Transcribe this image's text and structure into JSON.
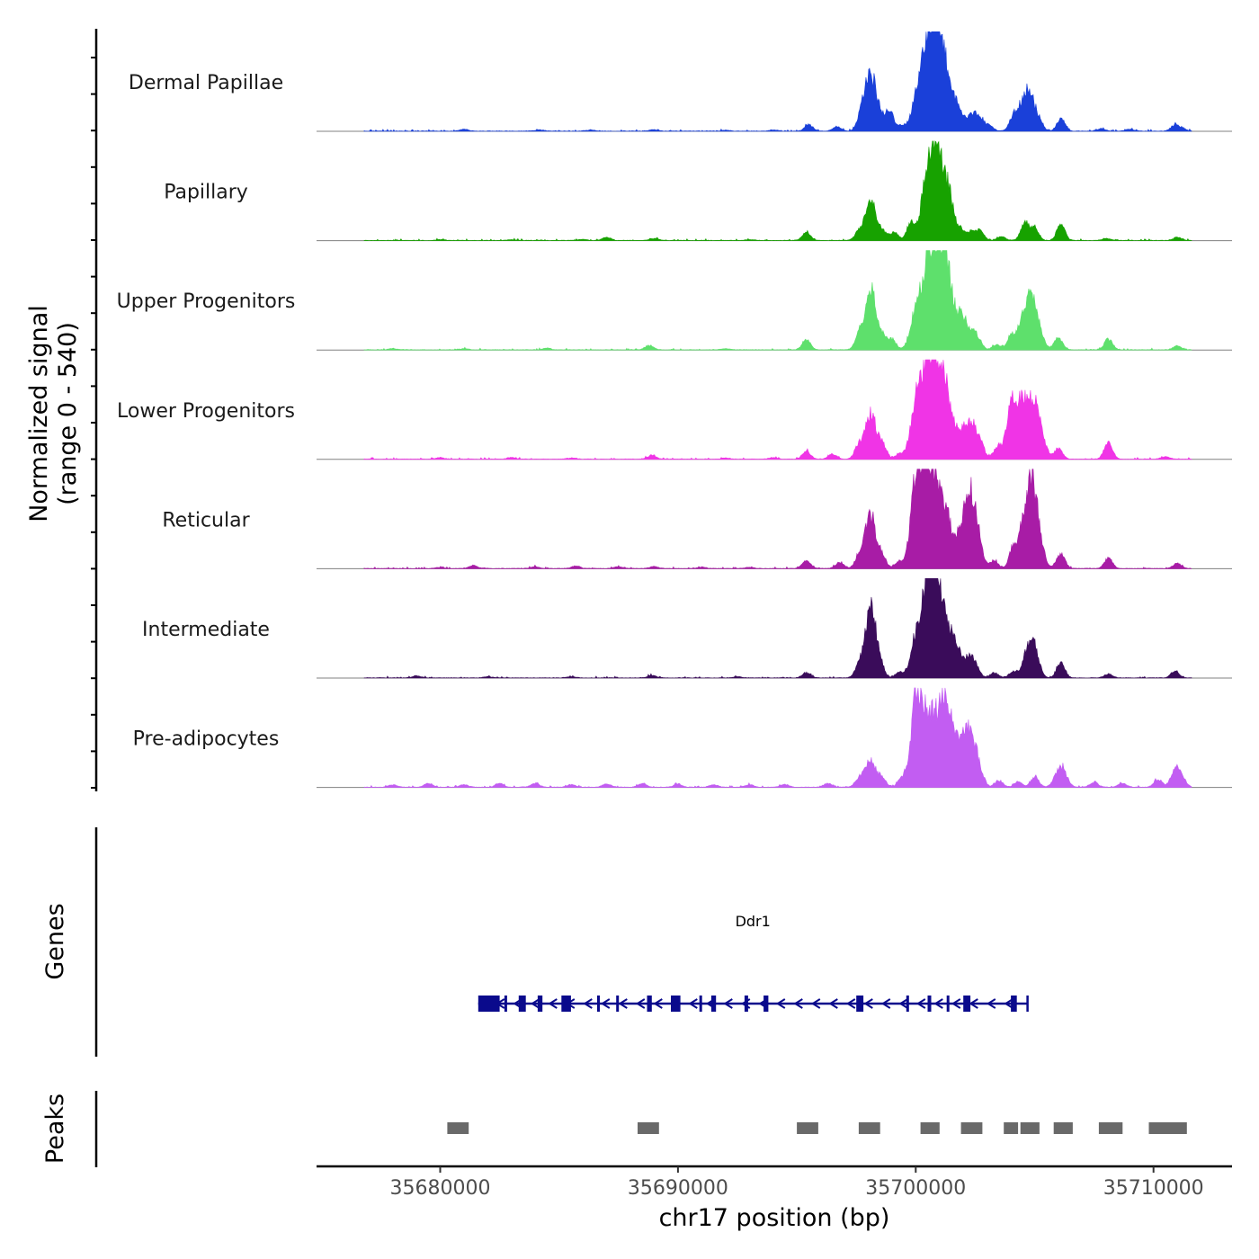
{
  "chart_data": {
    "type": "area",
    "title": "",
    "chromosome": "chr17",
    "xlabel": "chr17 position (bp)",
    "ylabel": "Normalized signal",
    "ylabel_range": "(range 0 - 540)",
    "ylim": [
      0,
      540
    ],
    "xlim": [
      35674800,
      35713300
    ],
    "x_ticks": [
      35680000,
      35690000,
      35700000,
      35710000
    ],
    "x_tick_labels": [
      "35680000",
      "35690000",
      "35700000",
      "35710000"
    ],
    "tracks": [
      {
        "name": "Dermal Papillae",
        "color": "#1a40d9",
        "signal_start": 35676800,
        "signal_end": 35711600,
        "peaks": [
          [
            35681000,
            14
          ],
          [
            35684200,
            10
          ],
          [
            35686300,
            9
          ],
          [
            35689000,
            11
          ],
          [
            35692000,
            6
          ],
          [
            35694000,
            8
          ],
          [
            35695500,
            50
          ],
          [
            35696700,
            35
          ],
          [
            35697700,
            110
          ],
          [
            35698100,
            430
          ],
          [
            35698500,
            90
          ],
          [
            35698900,
            150
          ],
          [
            35699400,
            40
          ],
          [
            35700000,
            160
          ],
          [
            35700300,
            300
          ],
          [
            35700600,
            420
          ],
          [
            35700800,
            380
          ],
          [
            35701000,
            300
          ],
          [
            35701200,
            260
          ],
          [
            35701500,
            160
          ],
          [
            35701800,
            120
          ],
          [
            35702100,
            60
          ],
          [
            35702400,
            110
          ],
          [
            35702700,
            90
          ],
          [
            35703100,
            40
          ],
          [
            35704100,
            100
          ],
          [
            35704500,
            160
          ],
          [
            35704800,
            230
          ],
          [
            35705200,
            60
          ],
          [
            35706100,
            90
          ],
          [
            35707800,
            20
          ],
          [
            35709000,
            15
          ],
          [
            35710900,
            45
          ],
          [
            35711200,
            20
          ]
        ]
      },
      {
        "name": "Papillary",
        "color": "#17a200",
        "signal_start": 35676800,
        "signal_end": 35711600,
        "peaks": [
          [
            35680000,
            6
          ],
          [
            35683000,
            6
          ],
          [
            35686000,
            8
          ],
          [
            35687000,
            25
          ],
          [
            35689000,
            15
          ],
          [
            35693000,
            6
          ],
          [
            35695400,
            60
          ],
          [
            35697600,
            60
          ],
          [
            35698100,
            310
          ],
          [
            35698600,
            60
          ],
          [
            35699100,
            60
          ],
          [
            35699800,
            140
          ],
          [
            35700300,
            140
          ],
          [
            35700600,
            540
          ],
          [
            35700900,
            330
          ],
          [
            35701200,
            390
          ],
          [
            35701500,
            140
          ],
          [
            35701900,
            80
          ],
          [
            35702300,
            60
          ],
          [
            35702700,
            80
          ],
          [
            35703600,
            30
          ],
          [
            35704600,
            140
          ],
          [
            35705000,
            90
          ],
          [
            35706100,
            120
          ],
          [
            35708000,
            15
          ],
          [
            35711000,
            25
          ]
        ]
      },
      {
        "name": "Upper Progenitors",
        "color": "#5ee06c",
        "signal_start": 35676800,
        "signal_end": 35711600,
        "peaks": [
          [
            35678000,
            10
          ],
          [
            35681000,
            8
          ],
          [
            35684500,
            12
          ],
          [
            35688800,
            35
          ],
          [
            35692000,
            8
          ],
          [
            35695400,
            80
          ],
          [
            35697600,
            100
          ],
          [
            35698100,
            480
          ],
          [
            35698600,
            100
          ],
          [
            35699000,
            80
          ],
          [
            35700000,
            260
          ],
          [
            35700300,
            180
          ],
          [
            35700600,
            540
          ],
          [
            35700900,
            450
          ],
          [
            35701200,
            460
          ],
          [
            35701500,
            280
          ],
          [
            35701900,
            150
          ],
          [
            35702200,
            160
          ],
          [
            35702600,
            80
          ],
          [
            35703400,
            40
          ],
          [
            35704000,
            100
          ],
          [
            35704500,
            180
          ],
          [
            35704800,
            250
          ],
          [
            35705100,
            180
          ],
          [
            35706000,
            90
          ],
          [
            35708100,
            80
          ],
          [
            35711000,
            30
          ]
        ]
      },
      {
        "name": "Lower Progenitors",
        "color": "#f034e6",
        "signal_start": 35676800,
        "signal_end": 35711600,
        "peaks": [
          [
            35680000,
            12
          ],
          [
            35683000,
            14
          ],
          [
            35685500,
            10
          ],
          [
            35688900,
            30
          ],
          [
            35692000,
            10
          ],
          [
            35694000,
            12
          ],
          [
            35695400,
            60
          ],
          [
            35696500,
            40
          ],
          [
            35697600,
            100
          ],
          [
            35698100,
            360
          ],
          [
            35698600,
            100
          ],
          [
            35699300,
            40
          ],
          [
            35700000,
            380
          ],
          [
            35700300,
            280
          ],
          [
            35700600,
            550
          ],
          [
            35700900,
            420
          ],
          [
            35701200,
            380
          ],
          [
            35701500,
            220
          ],
          [
            35701900,
            130
          ],
          [
            35702300,
            270
          ],
          [
            35702700,
            120
          ],
          [
            35703400,
            80
          ],
          [
            35704000,
            330
          ],
          [
            35704300,
            200
          ],
          [
            35704600,
            260
          ],
          [
            35704900,
            270
          ],
          [
            35705200,
            210
          ],
          [
            35706000,
            80
          ],
          [
            35708100,
            140
          ],
          [
            35710500,
            20
          ]
        ]
      },
      {
        "name": "Reticular",
        "color": "#a81ca6",
        "signal_start": 35676800,
        "signal_end": 35711600,
        "peaks": [
          [
            35680000,
            10
          ],
          [
            35681400,
            25
          ],
          [
            35684000,
            12
          ],
          [
            35685700,
            20
          ],
          [
            35687500,
            14
          ],
          [
            35689000,
            15
          ],
          [
            35691000,
            12
          ],
          [
            35693000,
            10
          ],
          [
            35695400,
            60
          ],
          [
            35696800,
            50
          ],
          [
            35697600,
            80
          ],
          [
            35698100,
            410
          ],
          [
            35698600,
            80
          ],
          [
            35699300,
            50
          ],
          [
            35700000,
            560
          ],
          [
            35700300,
            400
          ],
          [
            35700600,
            520
          ],
          [
            35700900,
            330
          ],
          [
            35701200,
            250
          ],
          [
            35701500,
            200
          ],
          [
            35701900,
            130
          ],
          [
            35702200,
            430
          ],
          [
            35702500,
            310
          ],
          [
            35703300,
            60
          ],
          [
            35704100,
            150
          ],
          [
            35704500,
            180
          ],
          [
            35704800,
            490
          ],
          [
            35705100,
            280
          ],
          [
            35706100,
            110
          ],
          [
            35708100,
            80
          ],
          [
            35711000,
            40
          ]
        ]
      },
      {
        "name": "Intermediate",
        "color": "#3a0c5a",
        "signal_start": 35676800,
        "signal_end": 35711600,
        "peaks": [
          [
            35679000,
            15
          ],
          [
            35682000,
            10
          ],
          [
            35685500,
            10
          ],
          [
            35688900,
            20
          ],
          [
            35692500,
            8
          ],
          [
            35695400,
            40
          ],
          [
            35697600,
            80
          ],
          [
            35698100,
            540
          ],
          [
            35698500,
            80
          ],
          [
            35699300,
            40
          ],
          [
            35700000,
            280
          ],
          [
            35700300,
            160
          ],
          [
            35700600,
            720
          ],
          [
            35700900,
            380
          ],
          [
            35701200,
            280
          ],
          [
            35701500,
            200
          ],
          [
            35701800,
            120
          ],
          [
            35702200,
            150
          ],
          [
            35702500,
            100
          ],
          [
            35703300,
            40
          ],
          [
            35704100,
            50
          ],
          [
            35704800,
            280
          ],
          [
            35705100,
            80
          ],
          [
            35706100,
            110
          ],
          [
            35708100,
            30
          ],
          [
            35710900,
            50
          ]
        ]
      },
      {
        "name": "Pre-adipocytes",
        "color": "#c25df2",
        "signal_start": 35676800,
        "signal_end": 35711600,
        "peaks": [
          [
            35678000,
            20
          ],
          [
            35679500,
            30
          ],
          [
            35681000,
            20
          ],
          [
            35682500,
            30
          ],
          [
            35684000,
            30
          ],
          [
            35685500,
            20
          ],
          [
            35687000,
            25
          ],
          [
            35688500,
            30
          ],
          [
            35690000,
            25
          ],
          [
            35691500,
            20
          ],
          [
            35693000,
            20
          ],
          [
            35694500,
            20
          ],
          [
            35696300,
            30
          ],
          [
            35697600,
            60
          ],
          [
            35698100,
            210
          ],
          [
            35698600,
            60
          ],
          [
            35699400,
            60
          ],
          [
            35700000,
            600
          ],
          [
            35700300,
            280
          ],
          [
            35700600,
            330
          ],
          [
            35700900,
            260
          ],
          [
            35701200,
            420
          ],
          [
            35701500,
            300
          ],
          [
            35701900,
            230
          ],
          [
            35702300,
            400
          ],
          [
            35702700,
            100
          ],
          [
            35703500,
            50
          ],
          [
            35704300,
            40
          ],
          [
            35705000,
            80
          ],
          [
            35706100,
            160
          ],
          [
            35707500,
            40
          ],
          [
            35708700,
            30
          ],
          [
            35710200,
            60
          ],
          [
            35710900,
            140
          ],
          [
            35711200,
            60
          ]
        ]
      }
    ],
    "genes": [
      {
        "name": "Ddr1",
        "strand": "-",
        "start": 35681600,
        "end": 35704700,
        "color": "#0a0a8c",
        "exons": [
          [
            35681600,
            35682500
          ],
          [
            35682700,
            35682800
          ],
          [
            35683300,
            35683600
          ],
          [
            35684100,
            35684300
          ],
          [
            35685100,
            35685500
          ],
          [
            35686600,
            35686700
          ],
          [
            35687400,
            35687500
          ],
          [
            35688700,
            35688900
          ],
          [
            35689700,
            35690100
          ],
          [
            35690900,
            35691000
          ],
          [
            35691400,
            35691600
          ],
          [
            35692800,
            35692950
          ],
          [
            35693600,
            35693800
          ],
          [
            35697500,
            35697800
          ],
          [
            35699600,
            35699700
          ],
          [
            35700500,
            35700650
          ],
          [
            35701300,
            35701400
          ],
          [
            35702000,
            35702300
          ],
          [
            35704000,
            35704250
          ]
        ]
      }
    ],
    "peak_regions": [
      [
        35680300,
        35681200
      ],
      [
        35688300,
        35689200
      ],
      [
        35695000,
        35695900
      ],
      [
        35697600,
        35698500
      ],
      [
        35700200,
        35701000
      ],
      [
        35701900,
        35702800
      ],
      [
        35703700,
        35704300
      ],
      [
        35704400,
        35705200
      ],
      [
        35705800,
        35706600
      ],
      [
        35707700,
        35708700
      ],
      [
        35709800,
        35711400
      ]
    ],
    "panel_titles": {
      "genes": "Genes",
      "peaks": "Peaks"
    }
  }
}
